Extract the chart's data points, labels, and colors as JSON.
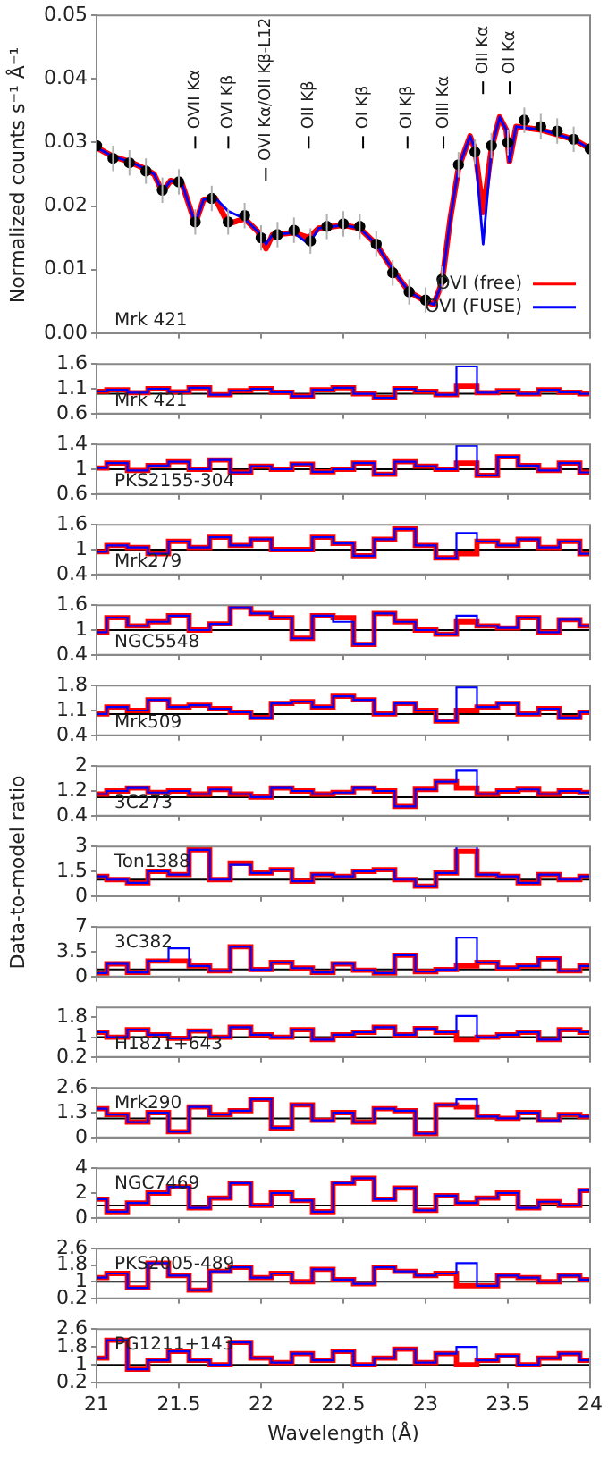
{
  "chart_data": [
    {
      "type": "line",
      "ylabel": "Normalized counts s⁻¹ Å⁻¹",
      "xlim": [
        21,
        24
      ],
      "xticks": [
        21,
        21.5,
        22,
        22.5,
        23,
        23.5,
        24
      ],
      "ylim": [
        0,
        0.05
      ],
      "yticks": [
        {
          "value": 0,
          "label": "0.00"
        },
        {
          "value": 0.01,
          "label": "0.01"
        },
        {
          "value": 0.02,
          "label": "0.02"
        },
        {
          "value": 0.03,
          "label": "0.03"
        },
        {
          "value": 0.04,
          "label": "0.04"
        },
        {
          "value": 0.05,
          "label": "0.05"
        }
      ],
      "tick_labels": "y",
      "legend": "bottom right",
      "annotations": [
        "Mrk 421",
        "OVII Kα",
        "OVI Kβ",
        "OVI Kα/OII Kβ-L12",
        "OII Kβ",
        "OI Kβ",
        "OI Kβ",
        "OIII Kα",
        "OII Kα",
        "OI Kα"
      ],
      "x": [
        21.0,
        21.1,
        21.2,
        21.3,
        21.35,
        21.4,
        21.45,
        21.52,
        21.6,
        21.65,
        21.72,
        21.8,
        21.9,
        21.98,
        22.03,
        22.07,
        22.2,
        22.29,
        22.35,
        22.5,
        22.6,
        22.7,
        22.8,
        22.9,
        23.0,
        23.05,
        23.1,
        23.15,
        23.2,
        23.27,
        23.3,
        23.35,
        23.4,
        23.45,
        23.49,
        23.51,
        23.55,
        23.7,
        23.9,
        24.0
      ],
      "series": [
        {
          "type": "scatter",
          "marker": "circle",
          "color": "#000000",
          "x": [
            21.0,
            21.1,
            21.2,
            21.3,
            21.4,
            21.5,
            21.6,
            21.7,
            21.8,
            21.9,
            22.0,
            22.1,
            22.2,
            22.3,
            22.4,
            22.5,
            22.6,
            22.7,
            22.8,
            22.9,
            23.0,
            23.1,
            23.2,
            23.3,
            23.4,
            23.5,
            23.6,
            23.7,
            23.8,
            23.9,
            24.0
          ],
          "values": [
            0.0295,
            0.0275,
            0.0268,
            0.0255,
            0.0225,
            0.0238,
            0.0175,
            0.0212,
            0.0175,
            0.0185,
            0.015,
            0.0155,
            0.0162,
            0.0145,
            0.0168,
            0.0172,
            0.0168,
            0.014,
            0.0095,
            0.0065,
            0.0052,
            0.0085,
            0.0265,
            0.0285,
            0.0295,
            0.03,
            0.0335,
            0.0325,
            0.0318,
            0.0305,
            0.029
          ],
          "errors": [
            0.002,
            0.002,
            0.002,
            0.002,
            0.002,
            0.002,
            0.002,
            0.002,
            0.002,
            0.002,
            0.002,
            0.002,
            0.002,
            0.002,
            0.002,
            0.002,
            0.002,
            0.002,
            0.002,
            0.002,
            0.002,
            0.002,
            0.002,
            0.002,
            0.002,
            0.002,
            0.002,
            0.002,
            0.002,
            0.002,
            0.002
          ]
        },
        {
          "name": "OVI (free)",
          "color": "#ff0000",
          "values": [
            0.0292,
            0.0278,
            0.027,
            0.0258,
            0.025,
            0.0222,
            0.024,
            0.0235,
            0.0172,
            0.021,
            0.0213,
            0.0172,
            0.018,
            0.016,
            0.0133,
            0.0155,
            0.0158,
            0.015,
            0.0165,
            0.017,
            0.0165,
            0.014,
            0.01,
            0.0065,
            0.005,
            0.0045,
            0.008,
            0.018,
            0.026,
            0.031,
            0.029,
            0.019,
            0.029,
            0.034,
            0.032,
            0.027,
            0.0325,
            0.032,
            0.0305,
            0.029
          ]
        },
        {
          "name": "OVI (FUSE)",
          "color": "#0000ff",
          "values": [
            0.0292,
            0.0278,
            0.027,
            0.0258,
            0.025,
            0.0222,
            0.024,
            0.0235,
            0.0172,
            0.021,
            0.0213,
            0.0192,
            0.018,
            0.016,
            0.014,
            0.0155,
            0.0158,
            0.014,
            0.0165,
            0.017,
            0.0165,
            0.014,
            0.01,
            0.0065,
            0.005,
            0.0045,
            0.008,
            0.018,
            0.026,
            0.031,
            0.029,
            0.014,
            0.029,
            0.034,
            0.032,
            0.027,
            0.0325,
            0.032,
            0.0305,
            0.029
          ]
        }
      ]
    },
    {
      "type": "step",
      "annotations": [
        "Mrk 421"
      ],
      "xlim": [
        21,
        24
      ],
      "xticks": [
        21,
        21.5,
        22,
        22.5,
        23,
        23.5,
        24
      ],
      "ylim": [
        0.6,
        1.6
      ],
      "yticks": [
        0.6,
        1.1,
        1.6
      ],
      "tick_labels": "y",
      "ref_lines": [
        {
          "axis": "y",
          "value": 1,
          "color": "#000000"
        }
      ],
      "x": [
        21,
        21.125,
        21.25,
        21.375,
        21.5,
        21.625,
        21.75,
        21.875,
        22,
        22.125,
        22.25,
        22.375,
        22.5,
        22.625,
        22.75,
        22.875,
        23,
        23.125,
        23.25,
        23.375,
        23.5,
        23.625,
        23.75,
        23.875,
        24
      ],
      "series": [
        {
          "color": "#ff0000",
          "values": [
            1.05,
            1.08,
            1.02,
            1.1,
            1.04,
            1.12,
            0.98,
            1.06,
            1.1,
            1.03,
            0.95,
            1.08,
            1.12,
            1.0,
            0.92,
            1.1,
            1.05,
            0.98,
            1.15,
            1.02,
            1.06,
            1.0,
            1.08,
            1.03,
            1.0
          ]
        },
        {
          "color": "#0000ff",
          "values": [
            1.05,
            1.08,
            1.02,
            1.1,
            1.04,
            1.12,
            0.98,
            1.06,
            1.1,
            1.03,
            0.95,
            1.08,
            1.12,
            1.0,
            0.92,
            1.1,
            1.05,
            0.98,
            1.55,
            1.02,
            1.06,
            1.0,
            1.08,
            1.03,
            1.0
          ]
        }
      ]
    },
    {
      "type": "step",
      "annotations": [
        "PKS2155-304"
      ],
      "xlim": [
        21,
        24
      ],
      "xticks": [
        21,
        21.5,
        22,
        22.5,
        23,
        23.5,
        24
      ],
      "ylim": [
        0.6,
        1.4
      ],
      "yticks": [
        0.6,
        1,
        1.4
      ],
      "tick_labels": "y",
      "ref_lines": [
        {
          "axis": "y",
          "value": 1,
          "color": "#000000"
        }
      ],
      "x": [
        21,
        21.125,
        21.25,
        21.375,
        21.5,
        21.625,
        21.75,
        21.875,
        22,
        22.125,
        22.25,
        22.375,
        22.5,
        22.625,
        22.75,
        22.875,
        23,
        23.125,
        23.25,
        23.375,
        23.5,
        23.625,
        23.75,
        23.875,
        24
      ],
      "series": [
        {
          "color": "#ff0000",
          "values": [
            1.02,
            1.1,
            0.98,
            1.06,
            1.12,
            1.0,
            1.15,
            0.95,
            1.05,
            1.0,
            1.08,
            0.96,
            1.0,
            1.1,
            0.92,
            1.12,
            1.05,
            1.0,
            1.1,
            0.9,
            1.2,
            1.06,
            0.98,
            1.1,
            0.95
          ]
        },
        {
          "color": "#0000ff",
          "values": [
            1.02,
            1.1,
            0.98,
            1.06,
            1.12,
            1.0,
            1.15,
            0.95,
            1.05,
            1.0,
            1.08,
            0.96,
            1.0,
            1.1,
            0.92,
            1.12,
            1.05,
            1.0,
            1.38,
            0.9,
            1.2,
            1.06,
            0.98,
            1.1,
            0.95
          ]
        }
      ]
    },
    {
      "type": "step",
      "annotations": [
        "Mrk279"
      ],
      "xlim": [
        21,
        24
      ],
      "xticks": [
        21,
        21.5,
        22,
        22.5,
        23,
        23.5,
        24
      ],
      "ylim": [
        0.4,
        1.6
      ],
      "yticks": [
        0.4,
        1,
        1.6
      ],
      "tick_labels": "y",
      "ref_lines": [
        {
          "axis": "y",
          "value": 1,
          "color": "#000000"
        }
      ],
      "x": [
        21,
        21.125,
        21.25,
        21.375,
        21.5,
        21.625,
        21.75,
        21.875,
        22,
        22.125,
        22.25,
        22.375,
        22.5,
        22.625,
        22.75,
        22.875,
        23,
        23.125,
        23.25,
        23.375,
        23.5,
        23.625,
        23.75,
        23.875,
        24
      ],
      "series": [
        {
          "color": "#ff0000",
          "values": [
            0.95,
            1.1,
            1.05,
            0.9,
            1.2,
            1.05,
            1.3,
            1.1,
            1.25,
            1.0,
            1.0,
            1.3,
            1.15,
            0.85,
            1.25,
            1.5,
            1.1,
            0.8,
            0.9,
            1.2,
            1.1,
            1.25,
            1.05,
            1.2,
            0.9
          ]
        },
        {
          "color": "#0000ff",
          "values": [
            0.95,
            1.1,
            1.05,
            0.9,
            1.2,
            1.05,
            1.3,
            1.1,
            1.25,
            1.0,
            1.0,
            1.3,
            1.15,
            0.85,
            1.25,
            1.5,
            1.1,
            0.8,
            1.4,
            1.2,
            1.1,
            1.25,
            1.05,
            1.2,
            0.9
          ]
        }
      ]
    },
    {
      "type": "step",
      "annotations": [
        "NGC5548"
      ],
      "xlim": [
        21,
        24
      ],
      "xticks": [
        21,
        21.5,
        22,
        22.5,
        23,
        23.5,
        24
      ],
      "ylim": [
        0.4,
        1.6
      ],
      "yticks": [
        0.4,
        1,
        1.6
      ],
      "tick_labels": "y",
      "ref_lines": [
        {
          "axis": "y",
          "value": 1,
          "color": "#000000"
        }
      ],
      "x": [
        21,
        21.125,
        21.25,
        21.375,
        21.5,
        21.625,
        21.75,
        21.875,
        22,
        22.125,
        22.25,
        22.375,
        22.5,
        22.625,
        22.75,
        22.875,
        23,
        23.125,
        23.25,
        23.375,
        23.5,
        23.625,
        23.75,
        23.875,
        24
      ],
      "series": [
        {
          "color": "#ff0000",
          "values": [
            0.95,
            1.3,
            1.1,
            1.2,
            1.35,
            1.0,
            1.15,
            1.55,
            1.4,
            1.3,
            0.8,
            1.35,
            1.3,
            0.65,
            1.4,
            1.2,
            1.0,
            0.9,
            1.2,
            1.1,
            1.05,
            1.3,
            0.95,
            1.25,
            1.1
          ]
        },
        {
          "color": "#0000ff",
          "values": [
            0.95,
            1.3,
            1.1,
            1.2,
            1.35,
            1.0,
            1.15,
            1.55,
            1.4,
            1.3,
            0.8,
            1.35,
            1.2,
            0.65,
            1.4,
            1.2,
            1.0,
            0.9,
            1.35,
            1.1,
            1.05,
            1.3,
            0.95,
            1.25,
            1.1
          ]
        }
      ]
    },
    {
      "type": "step",
      "annotations": [
        "Mrk509"
      ],
      "xlim": [
        21,
        24
      ],
      "xticks": [
        21,
        21.5,
        22,
        22.5,
        23,
        23.5,
        24
      ],
      "ylim": [
        0.4,
        1.8
      ],
      "yticks": [
        0.4,
        1.1,
        1.8
      ],
      "tick_labels": "y",
      "ref_lines": [
        {
          "axis": "y",
          "value": 1,
          "color": "#000000"
        }
      ],
      "x": [
        21,
        21.125,
        21.25,
        21.375,
        21.5,
        21.625,
        21.75,
        21.875,
        22,
        22.125,
        22.25,
        22.375,
        22.5,
        22.625,
        22.75,
        22.875,
        23,
        23.125,
        23.25,
        23.375,
        23.5,
        23.625,
        23.75,
        23.875,
        24
      ],
      "series": [
        {
          "color": "#ff0000",
          "values": [
            1.0,
            1.2,
            1.1,
            1.4,
            1.2,
            1.25,
            1.15,
            1.05,
            0.9,
            1.3,
            1.35,
            1.2,
            1.5,
            1.4,
            1.0,
            1.3,
            1.1,
            0.8,
            1.1,
            1.2,
            1.3,
            1.0,
            1.15,
            0.9,
            1.05
          ]
        },
        {
          "color": "#0000ff",
          "values": [
            1.0,
            1.2,
            1.1,
            1.4,
            1.2,
            1.25,
            1.15,
            1.05,
            0.9,
            1.3,
            1.35,
            1.2,
            1.5,
            1.4,
            1.0,
            1.3,
            1.1,
            0.8,
            1.75,
            1.2,
            1.3,
            1.0,
            1.15,
            0.9,
            1.05
          ]
        }
      ]
    },
    {
      "type": "step",
      "annotations": [
        "3C273"
      ],
      "xlim": [
        21,
        24
      ],
      "xticks": [
        21,
        21.5,
        22,
        22.5,
        23,
        23.5,
        24
      ],
      "ylim": [
        0.4,
        2
      ],
      "yticks": [
        0.4,
        1.2,
        2
      ],
      "tick_labels": "y",
      "ref_lines": [
        {
          "axis": "y",
          "value": 1,
          "color": "#000000"
        }
      ],
      "x": [
        21,
        21.125,
        21.25,
        21.375,
        21.5,
        21.625,
        21.75,
        21.875,
        22,
        22.125,
        22.25,
        22.375,
        22.5,
        22.625,
        22.75,
        22.875,
        23,
        23.125,
        23.25,
        23.375,
        23.5,
        23.625,
        23.75,
        23.875,
        24
      ],
      "series": [
        {
          "color": "#ff0000",
          "values": [
            1.1,
            1.2,
            1.3,
            1.15,
            1.2,
            1.1,
            1.25,
            1.1,
            1.0,
            1.3,
            1.2,
            1.1,
            1.15,
            1.3,
            1.2,
            0.7,
            1.25,
            1.5,
            1.3,
            1.1,
            1.2,
            1.25,
            1.1,
            1.2,
            1.15
          ]
        },
        {
          "color": "#0000ff",
          "values": [
            1.1,
            1.2,
            1.3,
            1.15,
            1.2,
            1.1,
            1.25,
            1.1,
            1.0,
            1.3,
            1.2,
            1.1,
            1.15,
            1.3,
            1.2,
            0.7,
            1.25,
            1.5,
            1.85,
            1.1,
            1.2,
            1.25,
            1.1,
            1.2,
            1.15
          ]
        }
      ]
    },
    {
      "type": "step",
      "ylabel": "Data-to-model ratio",
      "annotations": [
        "Ton1388"
      ],
      "xlim": [
        21,
        24
      ],
      "xticks": [
        21,
        21.5,
        22,
        22.5,
        23,
        23.5,
        24
      ],
      "ylim": [
        0,
        3
      ],
      "yticks": [
        0,
        1.5,
        3
      ],
      "tick_labels": "y",
      "ref_lines": [
        {
          "axis": "y",
          "value": 1,
          "color": "#000000"
        }
      ],
      "x": [
        21,
        21.125,
        21.25,
        21.375,
        21.5,
        21.625,
        21.75,
        21.875,
        22,
        22.125,
        22.25,
        22.375,
        22.5,
        22.625,
        22.75,
        22.875,
        23,
        23.125,
        23.25,
        23.375,
        23.5,
        23.625,
        23.75,
        23.875,
        24
      ],
      "series": [
        {
          "color": "#ff0000",
          "values": [
            1.2,
            1.0,
            0.8,
            1.5,
            1.3,
            2.8,
            1.0,
            2.0,
            1.4,
            1.6,
            0.9,
            1.3,
            1.2,
            1.5,
            1.6,
            1.0,
            0.6,
            1.4,
            2.7,
            1.3,
            1.2,
            0.8,
            1.3,
            1.0,
            1.2
          ]
        },
        {
          "color": "#0000ff",
          "values": [
            1.2,
            1.0,
            0.8,
            1.5,
            1.3,
            2.8,
            1.0,
            1.9,
            1.4,
            1.6,
            0.9,
            1.3,
            1.2,
            1.5,
            1.6,
            1.0,
            0.6,
            1.4,
            3.0,
            1.3,
            1.2,
            0.8,
            1.3,
            1.0,
            1.2
          ]
        }
      ]
    },
    {
      "type": "step",
      "annotations": [
        "3C382"
      ],
      "xlim": [
        21,
        24
      ],
      "xticks": [
        21,
        21.5,
        22,
        22.5,
        23,
        23.5,
        24
      ],
      "ylim": [
        0,
        7
      ],
      "yticks": [
        0,
        3.5,
        7
      ],
      "tick_labels": "y",
      "ref_lines": [
        {
          "axis": "y",
          "value": 1,
          "color": "#000000"
        }
      ],
      "x": [
        21,
        21.125,
        21.25,
        21.375,
        21.5,
        21.625,
        21.75,
        21.875,
        22,
        22.125,
        22.25,
        22.375,
        22.5,
        22.625,
        22.75,
        22.875,
        23,
        23.125,
        23.25,
        23.375,
        23.5,
        23.625,
        23.75,
        23.875,
        24
      ],
      "series": [
        {
          "color": "#ff0000",
          "values": [
            0.5,
            1.8,
            0.6,
            2.2,
            2.2,
            1.5,
            0.8,
            4.2,
            1.0,
            2.0,
            1.2,
            0.6,
            1.8,
            0.9,
            0.5,
            3.0,
            0.7,
            1.0,
            1.5,
            2.0,
            1.2,
            1.5,
            2.5,
            0.8,
            1.5
          ]
        },
        {
          "color": "#0000ff",
          "values": [
            0.5,
            1.8,
            0.6,
            2.2,
            4.0,
            1.5,
            0.8,
            4.2,
            1.0,
            2.0,
            1.2,
            0.6,
            1.8,
            0.9,
            0.5,
            3.0,
            0.7,
            1.0,
            5.5,
            2.0,
            1.2,
            1.5,
            2.5,
            0.8,
            1.5
          ]
        }
      ]
    },
    {
      "type": "step",
      "annotations": [
        "H1821+643"
      ],
      "xlim": [
        21,
        24
      ],
      "xticks": [
        21,
        21.5,
        22,
        22.5,
        23,
        23.5,
        24
      ],
      "ylim": [
        0.2,
        2.2
      ],
      "yticks": [
        0.2,
        1,
        1.8
      ],
      "tick_labels": "y",
      "ref_lines": [
        {
          "axis": "y",
          "value": 1,
          "color": "#000000"
        }
      ],
      "x": [
        21,
        21.125,
        21.25,
        21.375,
        21.5,
        21.625,
        21.75,
        21.875,
        22,
        22.125,
        22.25,
        22.375,
        22.5,
        22.625,
        22.75,
        22.875,
        23,
        23.125,
        23.25,
        23.375,
        23.5,
        23.625,
        23.75,
        23.875,
        24
      ],
      "series": [
        {
          "color": "#ff0000",
          "values": [
            1.2,
            1.0,
            1.3,
            1.1,
            0.95,
            1.25,
            1.0,
            1.4,
            1.1,
            1.0,
            1.3,
            0.9,
            1.1,
            1.2,
            1.4,
            1.1,
            1.35,
            1.2,
            0.9,
            1.0,
            1.1,
            1.2,
            0.9,
            1.3,
            1.2
          ]
        },
        {
          "color": "#0000ff",
          "values": [
            1.2,
            1.0,
            1.3,
            1.1,
            0.95,
            1.25,
            1.0,
            1.4,
            1.1,
            1.0,
            1.3,
            0.9,
            1.1,
            1.2,
            1.4,
            1.1,
            1.35,
            1.2,
            1.85,
            1.0,
            1.1,
            1.2,
            0.9,
            1.3,
            1.2
          ]
        }
      ]
    },
    {
      "type": "step",
      "annotations": [
        "Mrk290"
      ],
      "xlim": [
        21,
        24
      ],
      "xticks": [
        21,
        21.5,
        22,
        22.5,
        23,
        23.5,
        24
      ],
      "ylim": [
        0,
        2.6
      ],
      "yticks": [
        0,
        1.3,
        2.6
      ],
      "tick_labels": "y",
      "ref_lines": [
        {
          "axis": "y",
          "value": 1,
          "color": "#000000"
        }
      ],
      "x": [
        21,
        21.125,
        21.25,
        21.375,
        21.5,
        21.625,
        21.75,
        21.875,
        22,
        22.125,
        22.25,
        22.375,
        22.5,
        22.625,
        22.75,
        22.875,
        23,
        23.125,
        23.25,
        23.375,
        23.5,
        23.625,
        23.75,
        23.875,
        24
      ],
      "series": [
        {
          "color": "#ff0000",
          "values": [
            1.5,
            1.2,
            0.8,
            1.3,
            0.3,
            1.6,
            1.2,
            1.4,
            2.0,
            0.5,
            1.7,
            0.9,
            1.3,
            0.8,
            1.5,
            1.4,
            0.2,
            1.7,
            1.6,
            1.1,
            1.0,
            1.3,
            0.9,
            1.2,
            1.1
          ]
        },
        {
          "color": "#0000ff",
          "values": [
            1.5,
            1.2,
            0.8,
            1.3,
            0.3,
            1.6,
            1.2,
            1.4,
            2.0,
            0.5,
            1.7,
            0.9,
            1.3,
            0.8,
            1.5,
            1.4,
            0.2,
            1.7,
            2.0,
            1.1,
            1.0,
            1.3,
            0.9,
            1.2,
            1.1
          ]
        }
      ]
    },
    {
      "type": "step",
      "annotations": [
        "NGC7469"
      ],
      "xlim": [
        21,
        24
      ],
      "xticks": [
        21,
        21.5,
        22,
        22.5,
        23,
        23.5,
        24
      ],
      "ylim": [
        0,
        4
      ],
      "yticks": [
        0,
        2,
        4
      ],
      "tick_labels": "y",
      "ref_lines": [
        {
          "axis": "y",
          "value": 1,
          "color": "#000000"
        }
      ],
      "x": [
        21,
        21.125,
        21.25,
        21.375,
        21.5,
        21.625,
        21.75,
        21.875,
        22,
        22.125,
        22.25,
        22.375,
        22.5,
        22.625,
        22.75,
        22.875,
        23,
        23.125,
        23.25,
        23.375,
        23.5,
        23.625,
        23.75,
        23.875,
        24
      ],
      "series": [
        {
          "color": "#ff0000",
          "values": [
            1.5,
            0.5,
            1.2,
            2.0,
            2.5,
            0.8,
            1.6,
            2.8,
            1.0,
            2.0,
            1.4,
            0.5,
            2.8,
            3.2,
            1.5,
            2.4,
            0.6,
            1.8,
            1.2,
            1.6,
            2.0,
            0.8,
            1.3,
            1.0,
            2.2
          ]
        },
        {
          "color": "#0000ff",
          "values": [
            1.5,
            0.5,
            1.2,
            2.0,
            2.5,
            0.8,
            1.6,
            2.8,
            1.0,
            2.0,
            1.4,
            0.5,
            2.8,
            3.2,
            1.5,
            2.4,
            0.6,
            1.8,
            1.2,
            1.6,
            2.0,
            0.8,
            1.3,
            1.0,
            2.2
          ]
        }
      ]
    },
    {
      "type": "step",
      "annotations": [
        "PKS2005-489"
      ],
      "xlim": [
        21,
        24
      ],
      "xticks": [
        21,
        21.5,
        22,
        22.5,
        23,
        23.5,
        24
      ],
      "ylim": [
        0.2,
        2.6
      ],
      "yticks": [
        0.2,
        1,
        1.8,
        2.6
      ],
      "tick_labels": "y",
      "ref_lines": [
        {
          "axis": "y",
          "value": 1,
          "color": "#000000"
        }
      ],
      "x": [
        21,
        21.125,
        21.25,
        21.375,
        21.5,
        21.625,
        21.75,
        21.875,
        22,
        22.125,
        22.25,
        22.375,
        22.5,
        22.625,
        22.75,
        22.875,
        23,
        23.125,
        23.25,
        23.375,
        23.5,
        23.625,
        23.75,
        23.875,
        24
      ],
      "series": [
        {
          "color": "#ff0000",
          "values": [
            1.2,
            1.4,
            0.7,
            1.9,
            1.3,
            0.6,
            1.5,
            1.7,
            1.2,
            1.4,
            1.0,
            1.6,
            1.1,
            0.9,
            1.7,
            1.5,
            1.3,
            1.4,
            0.8,
            0.8,
            1.3,
            1.2,
            1.0,
            1.3,
            1.1
          ]
        },
        {
          "color": "#0000ff",
          "values": [
            1.2,
            1.4,
            0.7,
            1.9,
            1.3,
            0.6,
            1.5,
            1.7,
            1.2,
            1.4,
            1.0,
            1.6,
            1.1,
            0.9,
            1.7,
            1.5,
            1.3,
            1.4,
            1.9,
            0.8,
            1.3,
            1.2,
            1.0,
            1.3,
            1.1
          ]
        }
      ]
    },
    {
      "type": "step",
      "xlabel": "Wavelength (Å)",
      "annotations": [
        "PG1211+143"
      ],
      "xlim": [
        21,
        24
      ],
      "xticks": [
        21,
        21.5,
        22,
        22.5,
        23,
        23.5,
        24
      ],
      "ylim": [
        0.2,
        2.6
      ],
      "yticks": [
        0.2,
        1,
        1.8,
        2.6
      ],
      "ref_lines": [
        {
          "axis": "y",
          "value": 1,
          "color": "#000000"
        }
      ],
      "x": [
        21,
        21.125,
        21.25,
        21.375,
        21.5,
        21.625,
        21.75,
        21.875,
        22,
        22.125,
        22.25,
        22.375,
        22.5,
        22.625,
        22.75,
        22.875,
        23,
        23.125,
        23.25,
        23.375,
        23.5,
        23.625,
        23.75,
        23.875,
        24
      ],
      "series": [
        {
          "color": "#ff0000",
          "values": [
            1.3,
            2.1,
            0.8,
            1.2,
            1.6,
            1.2,
            1.0,
            2.0,
            1.3,
            1.1,
            1.5,
            1.2,
            1.6,
            1.0,
            1.3,
            1.7,
            1.1,
            1.5,
            1.0,
            1.2,
            1.4,
            1.0,
            1.3,
            1.5,
            1.2
          ]
        },
        {
          "color": "#0000ff",
          "values": [
            1.3,
            2.1,
            0.8,
            1.2,
            1.6,
            1.2,
            1.0,
            2.0,
            1.3,
            1.1,
            1.5,
            1.2,
            1.6,
            1.0,
            1.3,
            1.7,
            1.1,
            1.5,
            1.8,
            1.2,
            1.4,
            1.0,
            1.3,
            1.5,
            1.2
          ]
        }
      ]
    }
  ]
}
